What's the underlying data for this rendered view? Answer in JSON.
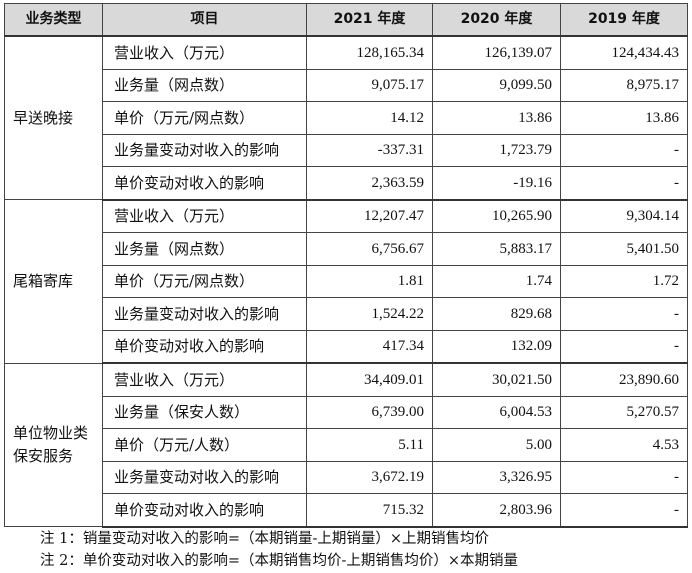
{
  "table": {
    "headers": [
      "业务类型",
      "项目",
      "2021 年度",
      "2020 年度",
      "2019 年度"
    ],
    "groups": [
      {
        "type": "早送晚接",
        "rows": [
          {
            "item": "营业收入（万元）",
            "y2021": "128,165.34",
            "y2020": "126,139.07",
            "y2019": "124,434.43"
          },
          {
            "item": "业务量（网点数）",
            "y2021": "9,075.17",
            "y2020": "9,099.50",
            "y2019": "8,975.17"
          },
          {
            "item": "单价（万元/网点数）",
            "y2021": "14.12",
            "y2020": "13.86",
            "y2019": "13.86"
          },
          {
            "item": "业务量变动对收入的影响",
            "y2021": "-337.31",
            "y2020": "1,723.79",
            "y2019": "-"
          },
          {
            "item": "单价变动对收入的影响",
            "y2021": "2,363.59",
            "y2020": "-19.16",
            "y2019": "-"
          }
        ]
      },
      {
        "type": "尾箱寄库",
        "rows": [
          {
            "item": "营业收入（万元）",
            "y2021": "12,207.47",
            "y2020": "10,265.90",
            "y2019": "9,304.14"
          },
          {
            "item": "业务量（网点数）",
            "y2021": "6,756.67",
            "y2020": "5,883.17",
            "y2019": "5,401.50"
          },
          {
            "item": "单价（万元/网点数）",
            "y2021": "1.81",
            "y2020": "1.74",
            "y2019": "1.72"
          },
          {
            "item": "业务量变动对收入的影响",
            "y2021": "1,524.22",
            "y2020": "829.68",
            "y2019": "-"
          },
          {
            "item": "单价变动对收入的影响",
            "y2021": "417.34",
            "y2020": "132.09",
            "y2019": "-"
          }
        ]
      },
      {
        "type": "单位物业类保安服务",
        "rows": [
          {
            "item": "营业收入（万元）",
            "y2021": "34,409.01",
            "y2020": "30,021.50",
            "y2019": "23,890.60"
          },
          {
            "item": "业务量（保安人数）",
            "y2021": "6,739.00",
            "y2020": "6,004.53",
            "y2019": "5,270.57"
          },
          {
            "item": "单价（万元/人数）",
            "y2021": "5.11",
            "y2020": "5.00",
            "y2019": "4.53"
          },
          {
            "item": "业务量变动对收入的影响",
            "y2021": "3,672.19",
            "y2020": "3,326.95",
            "y2019": "-"
          },
          {
            "item": "单价变动对收入的影响",
            "y2021": "715.32",
            "y2020": "2,803.96",
            "y2019": "-"
          }
        ]
      }
    ]
  },
  "notes": [
    "注 1：销量变动对收入的影响=（本期销量-上期销量）×上期销售均价",
    "注 2：单价变动对收入的影响=（本期销售均价-上期销售均价）×本期销量"
  ]
}
